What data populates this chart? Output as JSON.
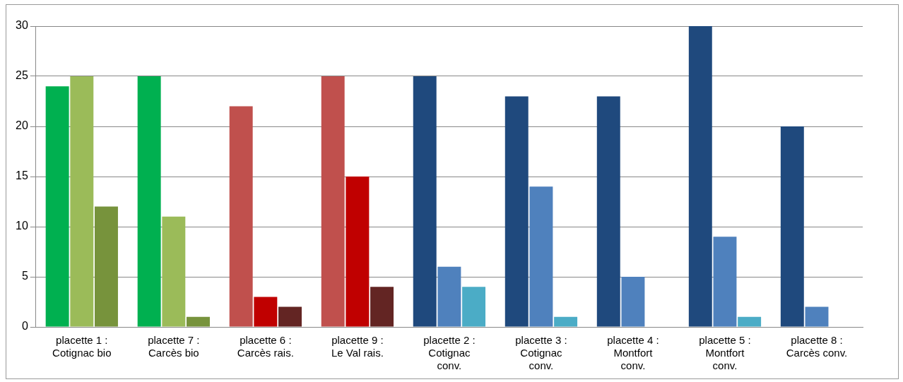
{
  "chart_data": {
    "type": "bar",
    "categories": [
      "placette 1 : Cotignac bio",
      "placette 7 : Carcès bio",
      "placette 6 : Carcès rais.",
      "placette 9 : Le Val rais.",
      "placette 2 : Cotignac conv.",
      "placette 3 : Cotignac conv.",
      "placette 4 : Montfort conv.",
      "placette 5 : Montfort conv.",
      "placette 8 : Carcès conv."
    ],
    "series": [
      {
        "colors": [
          "#00b050",
          "#00b050",
          "#c0504d",
          "#c0504d",
          "#1f497d",
          "#1f497d",
          "#1f497d",
          "#1f497d",
          "#1f497d"
        ],
        "values": [
          24,
          25,
          22,
          25,
          25,
          23,
          23,
          30,
          20
        ]
      },
      {
        "colors": [
          "#9bbb59",
          "#9bbb59",
          "#c00000",
          "#c00000",
          "#4f81bd",
          "#4f81bd",
          "#4f81bd",
          "#4f81bd",
          "#4f81bd"
        ],
        "values": [
          25,
          11,
          3,
          15,
          6,
          14,
          5,
          9,
          2
        ]
      },
      {
        "colors": [
          "#77933c",
          "#77933c",
          "#632523",
          "#632523",
          "#4bacc6",
          "#4bacc6",
          "#4bacc6",
          "#4bacc6",
          "#4bacc6"
        ],
        "values": [
          12,
          1,
          2,
          4,
          4,
          1,
          0,
          1,
          0
        ]
      }
    ],
    "ylim": [
      0,
      30
    ],
    "yticks": [
      0,
      5,
      10,
      15,
      20,
      25,
      30
    ],
    "grid": "y",
    "legend": false
  }
}
